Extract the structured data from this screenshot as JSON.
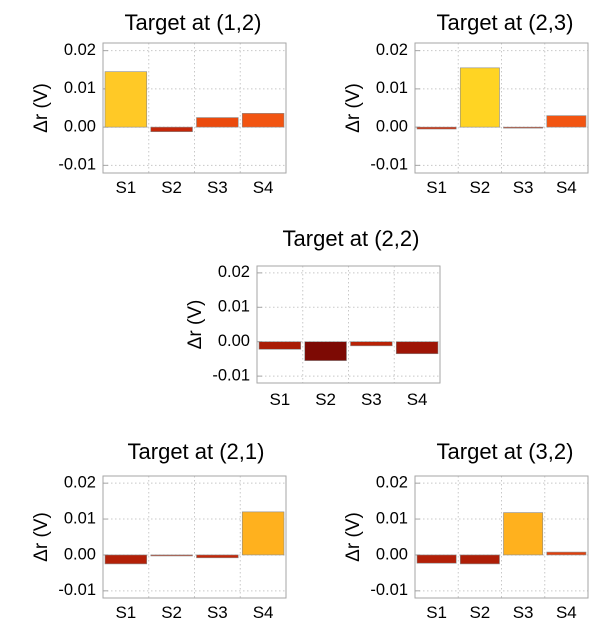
{
  "chart_data": [
    {
      "type": "bar",
      "title": "Target at (1,2)",
      "xlabel": "",
      "ylabel": "Δr (V)",
      "ylim": [
        -0.012,
        0.022
      ],
      "yticks": [
        "0.02",
        "0.01",
        "0.00",
        "-0.01"
      ],
      "categories": [
        "S1",
        "S2",
        "S3",
        "S4"
      ],
      "values": [
        0.0145,
        -0.0012,
        0.0025,
        0.0036
      ],
      "colors": [
        "#FFC926",
        "#C42709",
        "#EB4A0D",
        "#F25512"
      ],
      "grid": true
    },
    {
      "type": "bar",
      "title": "Target at (2,3)",
      "xlabel": "",
      "ylabel": "Δr (V)",
      "ylim": [
        -0.012,
        0.022
      ],
      "yticks": [
        "0.02",
        "0.01",
        "0.00",
        "-0.01"
      ],
      "categories": [
        "S1",
        "S2",
        "S3",
        "S4"
      ],
      "values": [
        -0.0005,
        0.0155,
        -0.0002,
        0.003
      ],
      "colors": [
        "#D22C07",
        "#FFD423",
        "#D22C07",
        "#F25512"
      ],
      "grid": true
    },
    {
      "type": "bar",
      "title": "Target at (2,2)",
      "xlabel": "",
      "ylabel": "Δr (V)",
      "ylim": [
        -0.012,
        0.022
      ],
      "yticks": [
        "0.02",
        "0.01",
        "0.00",
        "-0.01"
      ],
      "categories": [
        "S1",
        "S2",
        "S3",
        "S4"
      ],
      "values": [
        -0.0022,
        -0.0055,
        -0.0012,
        -0.0035
      ],
      "colors": [
        "#A91D06",
        "#7D0A04",
        "#B92206",
        "#9E1506"
      ],
      "grid": true
    },
    {
      "type": "bar",
      "title": "Target at (2,1)",
      "xlabel": "",
      "ylabel": "Δr (V)",
      "ylim": [
        -0.012,
        0.022
      ],
      "yticks": [
        "0.02",
        "0.01",
        "0.00",
        "-0.01"
      ],
      "categories": [
        "S1",
        "S2",
        "S3",
        "S4"
      ],
      "values": [
        -0.0025,
        -0.0002,
        -0.0008,
        0.012
      ],
      "colors": [
        "#B32008",
        "#D02C0A",
        "#C42709",
        "#FFB11E"
      ],
      "grid": true
    },
    {
      "type": "bar",
      "title": "Target at (3,2)",
      "xlabel": "",
      "ylabel": "Δr (V)",
      "ylim": [
        -0.012,
        0.022
      ],
      "yticks": [
        "0.02",
        "0.01",
        "0.00",
        "-0.01"
      ],
      "categories": [
        "S1",
        "S2",
        "S3",
        "S4"
      ],
      "values": [
        -0.0023,
        -0.0025,
        0.0118,
        0.0008
      ],
      "colors": [
        "#B32008",
        "#AE1E07",
        "#FFB11E",
        "#E2400C"
      ],
      "grid": true
    }
  ]
}
